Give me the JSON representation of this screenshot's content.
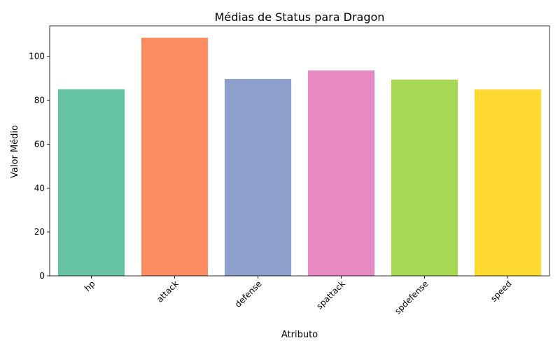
{
  "chart_data": {
    "type": "bar",
    "title": "Médias de Status para Dragon",
    "xlabel": "Atributo",
    "ylabel": "Valor Médio",
    "categories": [
      "hp",
      "attack",
      "defense",
      "spattack",
      "spdefense",
      "speed"
    ],
    "values": [
      85,
      108.5,
      89.7,
      93.6,
      89.4,
      84.9
    ],
    "colors": [
      "#66c2a5",
      "#fc8d62",
      "#8da0cb",
      "#e78ac3",
      "#a6d854",
      "#ffd92f"
    ],
    "ylim": [
      0,
      113.9
    ],
    "yticks": [
      0,
      20,
      40,
      60,
      80,
      100
    ],
    "grid": false,
    "legend": "none"
  }
}
